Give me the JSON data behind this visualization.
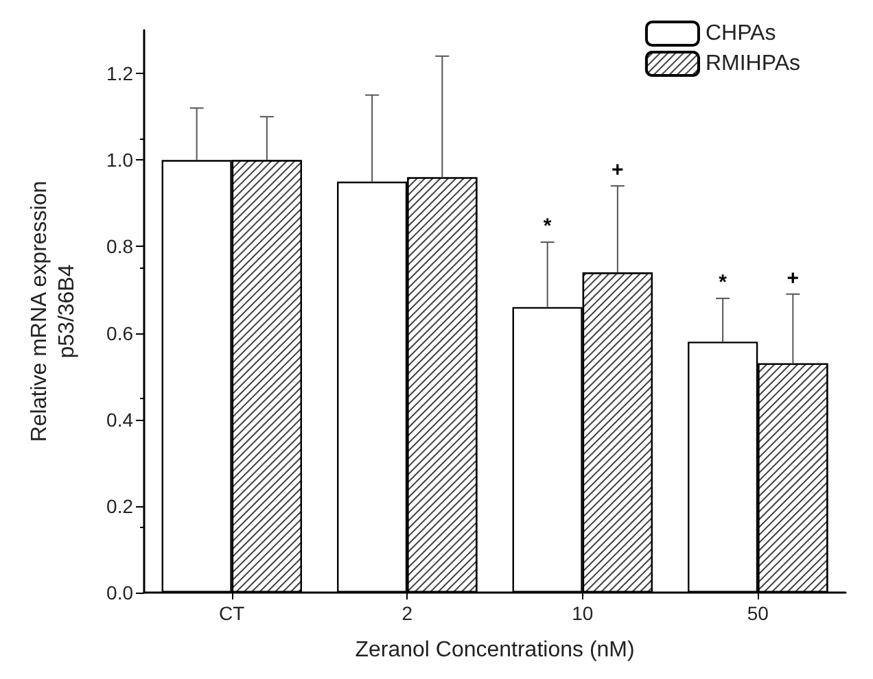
{
  "chart_data": {
    "type": "bar",
    "xlabel": "Zeranol Concentrations (nM)",
    "ylabel": "Relative mRNA expression\np53/36B4",
    "categories": [
      "CT",
      "2",
      "10",
      "50"
    ],
    "series": [
      {
        "name": "CHPAs",
        "color": "#ffffff",
        "values": [
          1.0,
          0.95,
          0.66,
          0.58
        ],
        "errors": [
          [
            1.0,
            1.12
          ],
          [
            0.95,
            1.15
          ],
          [
            0.66,
            0.81
          ],
          [
            0.58,
            0.68
          ]
        ]
      },
      {
        "name": "RMIHPAs",
        "color": "#404040",
        "values": [
          1.0,
          0.96,
          0.74,
          0.53
        ],
        "errors": [
          [
            1.0,
            1.1
          ],
          [
            0.96,
            1.24
          ],
          [
            0.74,
            0.94
          ],
          [
            0.53,
            0.69
          ]
        ]
      }
    ],
    "annotations": [
      "*",
      "+",
      "*",
      "+"
    ],
    "ylim": [
      0,
      1.3
    ],
    "yticks": [
      {
        "value": 0,
        "label": "0.0"
      },
      {
        "value": 0.2,
        "label": "0.2"
      },
      {
        "value": 0.4,
        "label": "0.4"
      },
      {
        "value": 0.6,
        "label": "0.6"
      },
      {
        "value": 0.8,
        "label": "0.8"
      },
      {
        "value": 1.0,
        "label": "1.0"
      },
      {
        "value": 1.2,
        "label": "1.2"
      }
    ],
    "legend": "top right",
    "grid": false
  }
}
